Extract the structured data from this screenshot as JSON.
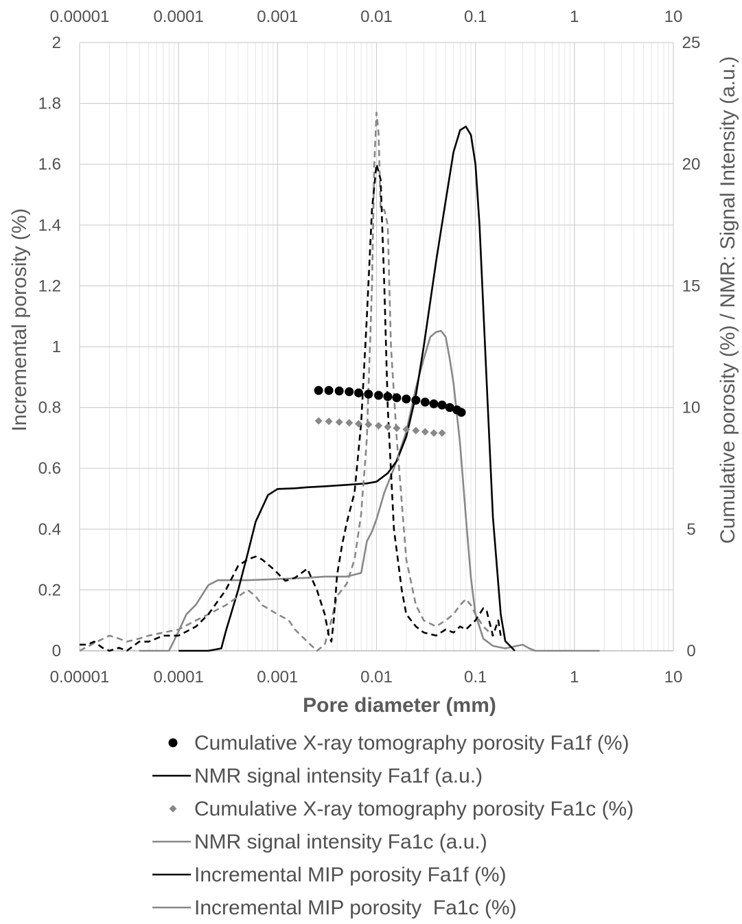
{
  "chart_data": {
    "type": "line",
    "title": "",
    "xlabel": "Pore diameter (mm)",
    "ylabel": "Incremental porosity (%)",
    "y2label": "Cumulative porosity (%) / NMR: Signal Intensity (a.u.)",
    "x_scale": "log",
    "xlim": [
      1e-05,
      10
    ],
    "ylim": [
      0,
      2
    ],
    "y2lim": [
      0,
      25
    ],
    "x_ticks": [
      "0.00001",
      "0.0001",
      "0.001",
      "0.01",
      "0.1",
      "1",
      "10"
    ],
    "x_tick_values": [
      1e-05,
      0.0001,
      0.001,
      0.01,
      0.1,
      1,
      10
    ],
    "y_ticks": [
      "0",
      "0.2",
      "0.4",
      "0.6",
      "0.8",
      "1",
      "1.2",
      "1.4",
      "1.6",
      "1.8",
      "2"
    ],
    "y_tick_values": [
      0,
      0.2,
      0.4,
      0.6,
      0.8,
      1,
      1.2,
      1.4,
      1.6,
      1.8,
      2
    ],
    "y2_ticks": [
      "0",
      "5",
      "10",
      "15",
      "20",
      "25"
    ],
    "y2_tick_values": [
      0,
      5,
      10,
      15,
      20,
      25
    ],
    "grid": true,
    "legend_position": "bottom",
    "series": [
      {
        "name": "Cumulative X-ray tomography porosity Fa1f (%)",
        "kind": "scatter",
        "marker": "circle",
        "axis": "y2",
        "color": "#000000",
        "x": [
          0.0026,
          0.0033,
          0.0042,
          0.0053,
          0.0066,
          0.0083,
          0.0105,
          0.013,
          0.016,
          0.02,
          0.025,
          0.031,
          0.038,
          0.046,
          0.055,
          0.065,
          0.072
        ],
        "y": [
          10.7,
          10.7,
          10.68,
          10.65,
          10.6,
          10.55,
          10.5,
          10.45,
          10.4,
          10.35,
          10.3,
          10.22,
          10.15,
          10.1,
          10.0,
          9.9,
          9.8
        ]
      },
      {
        "name": "NMR signal intensity Fa1f (a.u.)",
        "kind": "line",
        "style": "solid",
        "axis": "y2",
        "color": "#000000",
        "x": [
          0.0001,
          0.0002,
          0.00027,
          0.0003,
          0.0004,
          0.0005,
          0.0006,
          0.0008,
          0.001,
          0.0015,
          0.002,
          0.003,
          0.005,
          0.008,
          0.01,
          0.013,
          0.016,
          0.02,
          0.025,
          0.03,
          0.04,
          0.05,
          0.06,
          0.07,
          0.08,
          0.09,
          0.1,
          0.11,
          0.13,
          0.15,
          0.18,
          0.2,
          0.25
        ],
        "y": [
          0,
          0,
          0.1,
          0.8,
          2.5,
          4.0,
          5.3,
          6.4,
          6.65,
          6.68,
          6.72,
          6.76,
          6.82,
          6.88,
          6.95,
          7.3,
          7.8,
          8.8,
          10.5,
          12.5,
          16.0,
          18.5,
          20.5,
          21.4,
          21.55,
          21.2,
          20.0,
          17.5,
          11.0,
          5.5,
          1.5,
          0.4,
          0
        ]
      },
      {
        "name": "Cumulative X-ray tomography porosity Fa1c (%)",
        "kind": "scatter",
        "marker": "diamond",
        "axis": "y2",
        "color": "#888888",
        "x": [
          0.0026,
          0.0033,
          0.0042,
          0.0053,
          0.0066,
          0.0083,
          0.0105,
          0.013,
          0.016,
          0.02,
          0.025,
          0.031,
          0.038,
          0.046
        ],
        "y": [
          9.45,
          9.43,
          9.4,
          9.37,
          9.33,
          9.3,
          9.25,
          9.2,
          9.15,
          9.1,
          9.05,
          9.0,
          8.95,
          8.95
        ]
      },
      {
        "name": "NMR signal intensity Fa1c (a.u.)",
        "kind": "line",
        "style": "solid",
        "axis": "y2",
        "color": "#888888",
        "x": [
          4e-05,
          8e-05,
          0.0001,
          0.00012,
          0.00015,
          0.0002,
          0.00025,
          0.0003,
          0.0005,
          0.001,
          0.002,
          0.003,
          0.005,
          0.007,
          0.008,
          0.009,
          0.01,
          0.012,
          0.015,
          0.02,
          0.025,
          0.03,
          0.035,
          0.04,
          0.045,
          0.05,
          0.055,
          0.06,
          0.07,
          0.08,
          0.09,
          0.1,
          0.12,
          0.15,
          0.2,
          0.3,
          0.35,
          0.4,
          0.5,
          1,
          1.8
        ],
        "y": [
          0,
          0,
          0.8,
          1.5,
          1.9,
          2.7,
          2.9,
          2.9,
          2.9,
          2.95,
          3.0,
          3.05,
          3.05,
          3.2,
          4.5,
          4.9,
          5.4,
          6.5,
          7.5,
          9.0,
          10.8,
          12.0,
          12.9,
          13.1,
          13.15,
          12.9,
          12.0,
          11.0,
          8.5,
          5.5,
          3.0,
          1.5,
          0.5,
          0.2,
          0.1,
          0.25,
          0.1,
          0,
          0,
          0,
          0
        ]
      },
      {
        "name": "Incremental MIP porosity Fa1f (%)",
        "kind": "line",
        "style": "dashed",
        "axis": "y",
        "color": "#000000",
        "x": [
          1e-05,
          1.2e-05,
          1.4e-05,
          1.7e-05,
          2e-05,
          2.5e-05,
          3e-05,
          4e-05,
          5e-05,
          7e-05,
          0.0001,
          0.00015,
          0.0002,
          0.0003,
          0.0004,
          0.0005,
          0.0006,
          0.0007,
          0.0009,
          0.0012,
          0.0015,
          0.002,
          0.0025,
          0.003,
          0.0033,
          0.0035,
          0.0037,
          0.004,
          0.0045,
          0.005,
          0.006,
          0.007,
          0.008,
          0.009,
          0.01,
          0.011,
          0.012,
          0.013,
          0.015,
          0.018,
          0.02,
          0.025,
          0.03,
          0.04,
          0.05,
          0.06,
          0.07,
          0.08,
          0.1,
          0.12,
          0.13,
          0.15,
          0.17,
          0.18
        ],
        "y": [
          0.02,
          0.02,
          0.03,
          0.01,
          0,
          0.01,
          0,
          0.03,
          0.03,
          0.05,
          0.05,
          0.08,
          0.12,
          0.2,
          0.28,
          0.3,
          0.31,
          0.3,
          0.27,
          0.23,
          0.24,
          0.27,
          0.2,
          0.12,
          0.05,
          0.03,
          0.1,
          0.25,
          0.35,
          0.42,
          0.52,
          0.75,
          1.1,
          1.45,
          1.6,
          1.55,
          1.2,
          0.8,
          0.4,
          0.2,
          0.12,
          0.08,
          0.06,
          0.05,
          0.07,
          0.06,
          0.08,
          0.07,
          0.1,
          0.14,
          0.13,
          0.05,
          0.1,
          0.05
        ]
      },
      {
        "name": "Incremental MIP porosity  Fa1c (%)",
        "kind": "line",
        "style": "dashed",
        "axis": "y",
        "color": "#888888",
        "x": [
          1e-05,
          1.5e-05,
          2e-05,
          2.5e-05,
          3e-05,
          4e-05,
          5e-05,
          7e-05,
          0.0001,
          0.00015,
          0.0002,
          0.0003,
          0.0005,
          0.0006,
          0.0007,
          0.001,
          0.0013,
          0.0015,
          0.002,
          0.0025,
          0.003,
          0.0035,
          0.004,
          0.005,
          0.006,
          0.007,
          0.008,
          0.009,
          0.0095,
          0.01,
          0.0105,
          0.011,
          0.012,
          0.013,
          0.014,
          0.016,
          0.02,
          0.025,
          0.03,
          0.04,
          0.05,
          0.06,
          0.07,
          0.08,
          0.09,
          0.1,
          0.12,
          0.15
        ],
        "y": [
          0,
          0.03,
          0.05,
          0.04,
          0.03,
          0.04,
          0.05,
          0.06,
          0.07,
          0.1,
          0.12,
          0.15,
          0.2,
          0.18,
          0.15,
          0.12,
          0.1,
          0.07,
          0.03,
          0,
          0.02,
          0.1,
          0.18,
          0.22,
          0.3,
          0.45,
          0.7,
          1.2,
          1.6,
          1.77,
          1.7,
          1.45,
          1.45,
          1.4,
          1.0,
          0.7,
          0.3,
          0.15,
          0.1,
          0.08,
          0.1,
          0.12,
          0.15,
          0.17,
          0.15,
          0.12,
          0.08,
          0.05
        ]
      }
    ],
    "legend": [
      {
        "label": "Cumulative X-ray tomography porosity Fa1f (%)",
        "marker": "circle",
        "color": "#000000"
      },
      {
        "label": "NMR signal intensity Fa1f (a.u.)",
        "marker": "line",
        "color": "#000000"
      },
      {
        "label": "Cumulative X-ray tomography porosity Fa1c (%)",
        "marker": "diamond",
        "color": "#888888"
      },
      {
        "label": "NMR signal intensity Fa1c (a.u.)",
        "marker": "line",
        "color": "#888888"
      },
      {
        "label": "Incremental MIP porosity Fa1f (%)",
        "marker": "line",
        "color": "#000000"
      },
      {
        "label": "Incremental MIP porosity  Fa1c (%)",
        "marker": "line",
        "color": "#888888"
      }
    ]
  }
}
